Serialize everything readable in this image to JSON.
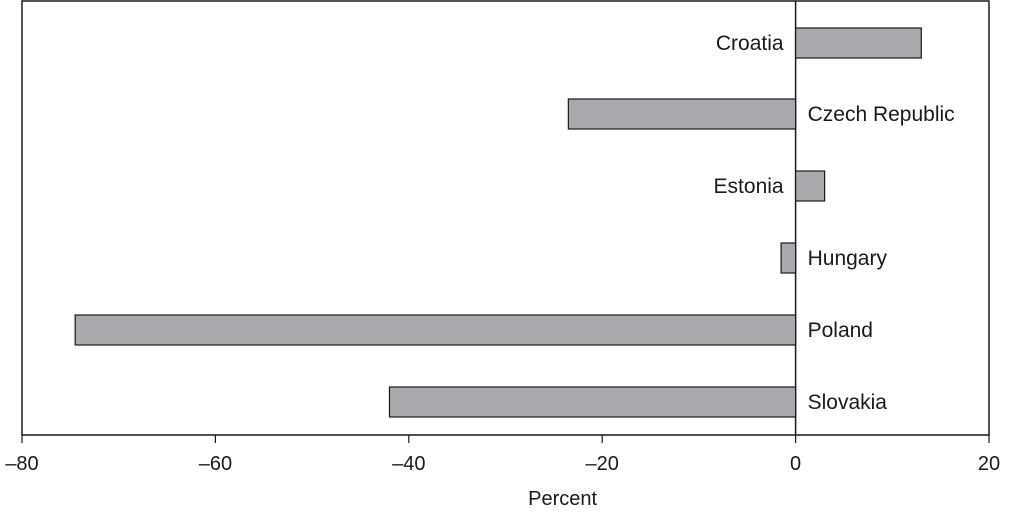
{
  "chart_data": {
    "type": "bar",
    "orientation": "horizontal",
    "title": "",
    "xlabel": "Percent",
    "ylabel": "",
    "categories": [
      "Croatia",
      "Czech Republic",
      "Estonia",
      "Hungary",
      "Poland",
      "Slovakia"
    ],
    "values": [
      13,
      -23.5,
      3,
      -1.5,
      -74.5,
      -42
    ],
    "xlim": [
      -80,
      20
    ],
    "xticks": [
      -80,
      -60,
      -40,
      -20,
      0,
      20
    ],
    "xtick_labels": [
      "–80",
      "–60",
      "–40",
      "–20",
      "0",
      "20"
    ],
    "grid": false,
    "legend": "none",
    "colors": {
      "bar_fill": "#a7a9ac",
      "bar_stroke": "#1a1a1a",
      "axis": "#1a1a1a"
    }
  }
}
